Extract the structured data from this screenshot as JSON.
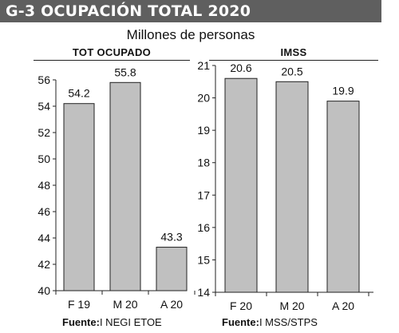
{
  "header": {
    "title": "G-3 OCUPACIÓN TOTAL 2020",
    "subtitle": "Millones de personas"
  },
  "chart_data": [
    {
      "type": "bar",
      "title": "TOT OCUPADO",
      "categories": [
        "F 19",
        "M 20",
        "A 20"
      ],
      "values": [
        54.2,
        55.8,
        43.3
      ],
      "value_labels": [
        "54.2",
        "55.8",
        "43.3"
      ],
      "ylim": [
        40,
        56
      ],
      "yticks": [
        "40",
        "42",
        "44",
        "46",
        "48",
        "50",
        "52",
        "54",
        "56"
      ],
      "xlabel": "",
      "ylabel": "",
      "grid": false,
      "bar_color": "#c0c0c0",
      "source_label": "Fuente:",
      "source_text": "I NEGI   ETOE"
    },
    {
      "type": "bar",
      "title": "IMSS",
      "categories": [
        "F 20",
        "M 20",
        "A 20"
      ],
      "values": [
        20.6,
        20.5,
        19.9
      ],
      "value_labels": [
        "20.6",
        "20.5",
        "19.9"
      ],
      "ylim": [
        14,
        21
      ],
      "yticks": [
        "14",
        "15",
        "16",
        "17",
        "18",
        "19",
        "20",
        "21"
      ],
      "xlabel": "",
      "ylabel": "",
      "grid": false,
      "bar_color": "#c0c0c0",
      "source_label": "Fuente:",
      "source_text": "I MSS/STPS"
    }
  ]
}
